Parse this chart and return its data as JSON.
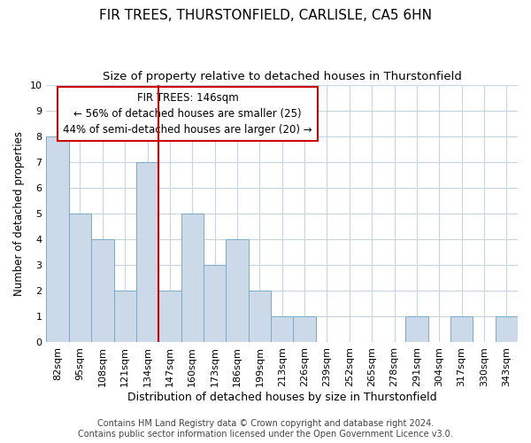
{
  "title": "FIR TREES, THURSTONFIELD, CARLISLE, CA5 6HN",
  "subtitle": "Size of property relative to detached houses in Thurstonfield",
  "xlabel": "Distribution of detached houses by size in Thurstonfield",
  "ylabel": "Number of detached properties",
  "categories": [
    "82sqm",
    "95sqm",
    "108sqm",
    "121sqm",
    "134sqm",
    "147sqm",
    "160sqm",
    "173sqm",
    "186sqm",
    "199sqm",
    "213sqm",
    "226sqm",
    "239sqm",
    "252sqm",
    "265sqm",
    "278sqm",
    "291sqm",
    "304sqm",
    "317sqm",
    "330sqm",
    "343sqm"
  ],
  "values": [
    8,
    5,
    4,
    2,
    7,
    2,
    5,
    3,
    4,
    2,
    1,
    1,
    0,
    0,
    0,
    0,
    1,
    0,
    1,
    0,
    1
  ],
  "bar_color": "#ccd9e8",
  "bar_edge_color": "#7aaac8",
  "marker_line_index": 5,
  "marker_line_color": "#cc0000",
  "annotation_title": "FIR TREES: 146sqm",
  "annotation_line1": "← 56% of detached houses are smaller (25)",
  "annotation_line2": "44% of semi-detached houses are larger (20) →",
  "annotation_box_edge": "#cc0000",
  "ylim": [
    0,
    10
  ],
  "yticks": [
    0,
    1,
    2,
    3,
    4,
    5,
    6,
    7,
    8,
    9,
    10
  ],
  "footer1": "Contains HM Land Registry data © Crown copyright and database right 2024.",
  "footer2": "Contains public sector information licensed under the Open Government Licence v3.0.",
  "bg_color": "#ffffff",
  "plot_bg_color": "#ffffff",
  "grid_color": "#c8d4e0",
  "title_fontsize": 11,
  "subtitle_fontsize": 9.5,
  "xlabel_fontsize": 9,
  "ylabel_fontsize": 8.5,
  "tick_fontsize": 8,
  "annot_fontsize": 8.5,
  "footer_fontsize": 7
}
